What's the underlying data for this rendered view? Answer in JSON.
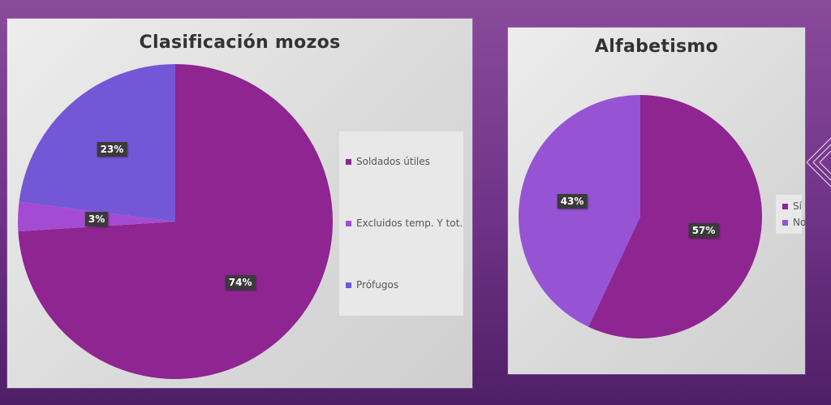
{
  "colors": {
    "magenta": "#8e2590",
    "lilac": "#a44bd3",
    "blue_violet": "#7357d6",
    "violet": "#9654d4"
  },
  "chart_data": [
    {
      "type": "pie",
      "title": "Clasificación mozos",
      "categories": [
        "Soldados útiles",
        "Excluidos temp. Y tot.",
        "Prófugos"
      ],
      "values": [
        74,
        3,
        23
      ],
      "data_labels": [
        "74%",
        "3%",
        "23%"
      ],
      "colors": [
        "#8e2590",
        "#a44bd3",
        "#7357d6"
      ],
      "legend_position": "right"
    },
    {
      "type": "pie",
      "title": "Alfabetismo",
      "categories": [
        "Sí",
        "No"
      ],
      "values": [
        57,
        43
      ],
      "data_labels": [
        "57%",
        "43%"
      ],
      "colors": [
        "#8e2590",
        "#9654d4"
      ],
      "legend_position": "right"
    }
  ]
}
